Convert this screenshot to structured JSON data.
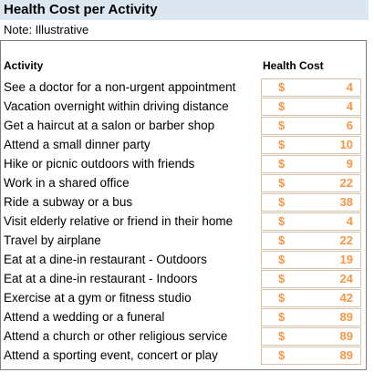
{
  "header": {
    "title": "Health Cost per Activity",
    "note": "Note: Illustrative"
  },
  "table": {
    "columns": [
      "Activity",
      "Health Cost"
    ],
    "currency": "$",
    "rows": [
      [
        "See a doctor for a non-urgent appointment",
        4
      ],
      [
        "Vacation overnight within driving distance",
        4
      ],
      [
        "Get a haircut at a salon or barber shop",
        6
      ],
      [
        "Attend a small dinner party",
        10
      ],
      [
        "Hike or picnic outdoors with friends",
        9
      ],
      [
        "Work in a shared office",
        22
      ],
      [
        "Ride a subway or a bus",
        38
      ],
      [
        "Visit elderly relative or friend in their home",
        4
      ],
      [
        "Travel by airplane",
        22
      ],
      [
        "Eat at a dine-in restaurant - Outdoors",
        19
      ],
      [
        "Eat at a dine-in restaurant - Indoors",
        24
      ],
      [
        "Exercise at a gym or fitness studio",
        42
      ],
      [
        "Attend a wedding or a funeral",
        89
      ],
      [
        "Attend a church or other religious service",
        89
      ],
      [
        "Attend a sporting event, concert or play",
        89
      ]
    ]
  }
}
